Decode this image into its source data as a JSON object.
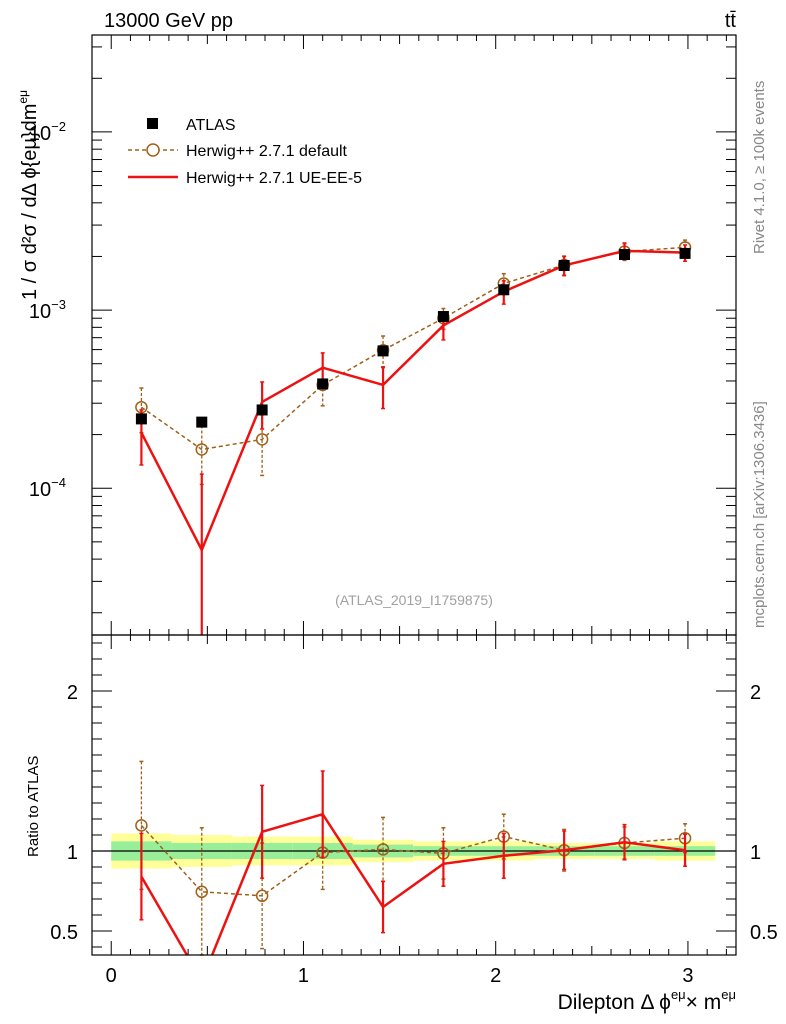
{
  "chart_data": {
    "type": "line",
    "header_left": "13000 GeV pp",
    "header_right": "tt̄",
    "ylabel_main": "1 / σ  d²σ / dΔ ϕ{eμ}dm",
    "ylabel_main_sup": "eμ",
    "ylabel_ratio": "Ratio to ATLAS",
    "xlabel": "Dilepton Δ ϕ",
    "xlabel_sup1": "eμ",
    "xlabel_mid": "× m",
    "xlabel_sup2": "eμ",
    "watermark": "(ATLAS_2019_I1759875)",
    "side_text_top": "Rivet 4.1.0, ≥ 100k events",
    "side_text_bottom": "mcplots.cern.ch [arXiv:1306.3436]",
    "main_y_ticks": [
      {
        "base": "10",
        "exp": "−2",
        "value": 0.01
      },
      {
        "base": "10",
        "exp": "−3",
        "value": 0.001
      },
      {
        "base": "10",
        "exp": "−4",
        "value": 0.0001
      }
    ],
    "main_ylim": [
      1.5e-05,
      0.035
    ],
    "ratio_y_ticks": [
      {
        "label": "2",
        "value": 2
      },
      {
        "label": "1",
        "value": 1
      },
      {
        "label": "0.5",
        "value": 0.5
      }
    ],
    "ratio_ylim": [
      0.35,
      2.35
    ],
    "x_ticks": [
      {
        "label": "0",
        "value": 0
      },
      {
        "label": "1",
        "value": 1
      },
      {
        "label": "2",
        "value": 2
      },
      {
        "label": "3",
        "value": 3
      }
    ],
    "xlim": [
      -0.1,
      3.25
    ],
    "x": [
      0.157,
      0.471,
      0.785,
      1.1,
      1.414,
      1.728,
      2.042,
      2.356,
      2.67,
      2.985
    ],
    "bin_edges": [
      0,
      0.314,
      0.628,
      0.942,
      1.257,
      1.571,
      1.885,
      2.199,
      2.513,
      2.827,
      3.142
    ],
    "band_outer": [
      0.11,
      0.1,
      0.09,
      0.09,
      0.07,
      0.06,
      0.06,
      0.05,
      0.05,
      0.06
    ],
    "band_inner": [
      0.06,
      0.05,
      0.05,
      0.05,
      0.04,
      0.03,
      0.03,
      0.03,
      0.03,
      0.03
    ],
    "series": [
      {
        "name": "ATLAS",
        "style": "data",
        "color": "#000000",
        "values": [
          0.000245,
          0.000235,
          0.000275,
          0.000385,
          0.00059,
          0.00092,
          0.0013,
          0.00178,
          0.00205,
          0.00208
        ],
        "ratio": [
          1,
          1,
          1,
          1,
          1,
          1,
          1,
          1,
          1,
          1
        ]
      },
      {
        "name": "Herwig++ 2.7.1 default",
        "style": "dashed-open",
        "color": "#a0601a",
        "values": [
          0.000285,
          0.000165,
          0.000188,
          0.00038,
          0.000595,
          0.0009,
          0.00141,
          0.00179,
          0.00213,
          0.00225
        ],
        "err": [
          8e-05,
          6e-05,
          7e-05,
          9e-05,
          0.00012,
          0.00012,
          0.00019,
          0.00022,
          0.00023,
          0.00022
        ],
        "ratio": [
          1.16,
          0.745,
          0.72,
          0.99,
          1.01,
          0.985,
          1.09,
          1.005,
          1.05,
          1.08
        ],
        "ratio_err": [
          0.4,
          0.4,
          0.33,
          0.23,
          0.2,
          0.16,
          0.14,
          0.13,
          0.1,
          0.09
        ]
      },
      {
        "name": "Herwig++ 2.7.1 UE-EE-5",
        "style": "solid",
        "color": "#ee1111",
        "values": [
          0.000205,
          4.5e-05,
          0.000305,
          0.000475,
          0.00038,
          0.00082,
          0.00127,
          0.00178,
          0.00215,
          0.0021
        ],
        "err": [
          7e-05,
          7.5e-05,
          9e-05,
          0.0001,
          0.0001,
          0.00014,
          0.00019,
          0.00022,
          0.00023,
          0.00022
        ],
        "ratio": [
          0.84,
          0.19,
          1.12,
          1.23,
          0.65,
          0.92,
          0.97,
          1.005,
          1.055,
          1.005
        ],
        "ratio_err": [
          0.27,
          0.32,
          0.29,
          0.27,
          0.16,
          0.14,
          0.14,
          0.12,
          0.11,
          0.1
        ]
      }
    ]
  }
}
